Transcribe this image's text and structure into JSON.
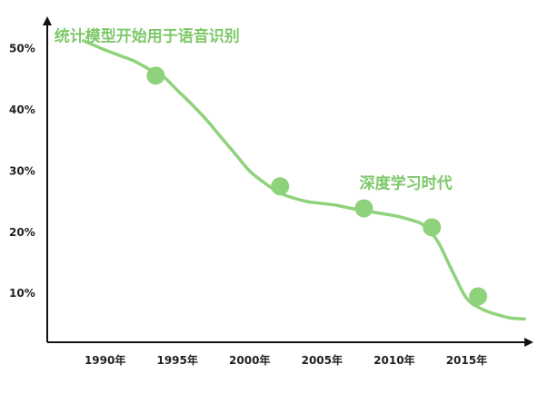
{
  "colors": {
    "accent": "#8fd27c",
    "accent_text": "#7ec86a",
    "axis": "#111111",
    "text": "#222222"
  },
  "chart_data": {
    "type": "line",
    "title": "",
    "xlabel": "",
    "ylabel": "",
    "x_ticks": [
      "1990年",
      "1995年",
      "2000年",
      "2005年",
      "2010年",
      "2015年"
    ],
    "y_ticks": [
      "10%",
      "20%",
      "30%",
      "40%",
      "50%"
    ],
    "xlim": [
      1986,
      2019.5
    ],
    "ylim": [
      2,
      55
    ],
    "series": [
      {
        "x": [
          1988.5,
          1990.0,
          1991.0,
          1992.0,
          1993.0,
          1994.0,
          1995.0,
          1996.0,
          1997.0,
          1998.0,
          1999.0,
          2000.0,
          2001.0,
          2002.0,
          2003.0,
          2004.0,
          2005.0,
          2006.0,
          2007.0,
          2008.0,
          2009.0,
          2010.0,
          2011.0,
          2012.0,
          2013.0,
          2014.0,
          2015.0,
          2016.0,
          2017.0,
          2018.0,
          2019.0
        ],
        "y": [
          51.3,
          49.8,
          48.9,
          48.0,
          46.7,
          45.5,
          43.2,
          40.9,
          38.4,
          35.6,
          32.8,
          30.0,
          28.1,
          26.5,
          25.6,
          25.0,
          24.7,
          24.4,
          23.9,
          23.5,
          23.1,
          22.7,
          22.1,
          21.2,
          18.5,
          13.7,
          9.2,
          7.5,
          6.6,
          6.0,
          5.8
        ]
      }
    ],
    "highlight_points": [
      {
        "x": 1993.5,
        "y": 45.6
      },
      {
        "x": 2002.1,
        "y": 27.5
      },
      {
        "x": 2007.9,
        "y": 23.9
      },
      {
        "x": 2012.6,
        "y": 20.8
      },
      {
        "x": 2015.8,
        "y": 9.5
      }
    ],
    "annotations": [
      {
        "text": "统计模型开始用于语音识别",
        "x": 1992.9,
        "y": 51.2
      },
      {
        "text": "深度学习时代",
        "x": 2010.8,
        "y": 27.2
      }
    ],
    "grid": false,
    "legend": "none"
  }
}
